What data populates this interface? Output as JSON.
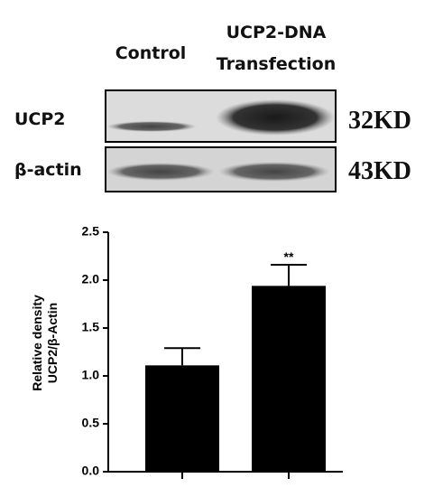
{
  "blot": {
    "lanes": [
      {
        "lines": [
          "Control"
        ]
      },
      {
        "lines": [
          "UCP2-DNA",
          "Transfection"
        ]
      }
    ],
    "rows": [
      {
        "label": "UCP2",
        "size": "32KD"
      },
      {
        "label": "β-actin",
        "size": "43KD"
      }
    ]
  },
  "chart_data": {
    "type": "bar",
    "ylabel": [
      "Relative density",
      "UCP2/β-Actin"
    ],
    "categories": [
      null,
      null
    ],
    "values": [
      1.11,
      1.94
    ],
    "errors": [
      0.18,
      0.22
    ],
    "annotations": [
      {
        "index": 1,
        "text": "**"
      }
    ],
    "color": "#000000",
    "ylim": [
      0,
      2.5
    ],
    "yticks": [
      {
        "value": 0,
        "label": "0.0"
      },
      0.5,
      {
        "value": 1,
        "label": "1.0"
      },
      1.5,
      {
        "value": 2,
        "label": "2.0"
      },
      2.5
    ]
  }
}
